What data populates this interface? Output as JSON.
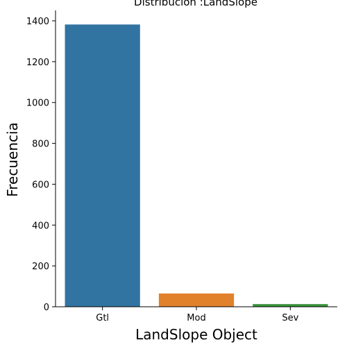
{
  "chart_data": {
    "type": "bar",
    "title": "Distribución :LandSlope",
    "xlabel": "LandSlope Object",
    "ylabel": "Frecuencia",
    "categories": [
      "Gtl",
      "Mod",
      "Sev"
    ],
    "values": [
      1382,
      65,
      13
    ],
    "colors": [
      "#3274a1",
      "#e1812c",
      "#3a923a"
    ],
    "ylim": [
      0,
      1451
    ],
    "yticks": [
      0,
      200,
      400,
      600,
      800,
      1000,
      1200,
      1400
    ],
    "grid": false,
    "legend": "none"
  }
}
